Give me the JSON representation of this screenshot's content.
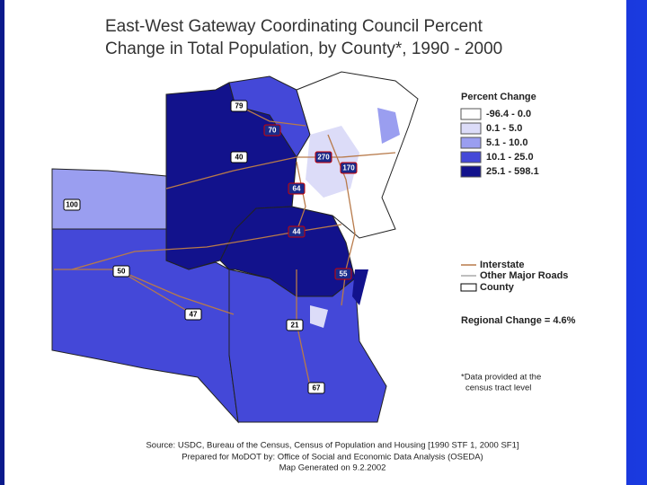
{
  "header": {
    "title_lines": [
      "East-West Gateway Coordinating Council Percent",
      "Change in Total Population, by County*, 1990 - 2000"
    ]
  },
  "legend": {
    "title": "Percent Change",
    "items": [
      {
        "label": "-96.4 - 0.0",
        "color": "#ffffff"
      },
      {
        "label": "0.1 - 5.0",
        "color": "#dcdcf8"
      },
      {
        "label": "5.1 - 10.0",
        "color": "#9a9ef0"
      },
      {
        "label": "10.1 - 25.0",
        "color": "#4448d8"
      },
      {
        "label": "25.1 - 598.1",
        "color": "#12128c"
      }
    ]
  },
  "road_legend": [
    "Interstate",
    "Other Major Roads",
    "County"
  ],
  "regional_change": "Regional Change = 4.6%",
  "footnote": [
    "*Data provided at the",
    "census tract level"
  ],
  "routes": [
    "79",
    "70",
    "270",
    "170",
    "40",
    "64",
    "100",
    "44",
    "55",
    "50",
    "47",
    "21",
    "67"
  ],
  "source": [
    "Source:  USDC, Bureau of the Census, Census of Population and Housing [1990 STF 1, 2000 SF1]",
    "Prepared for MoDOT by: Office of Social and Economic Data Analysis (OSEDA)",
    "Map Generated on 9.2.2002"
  ]
}
